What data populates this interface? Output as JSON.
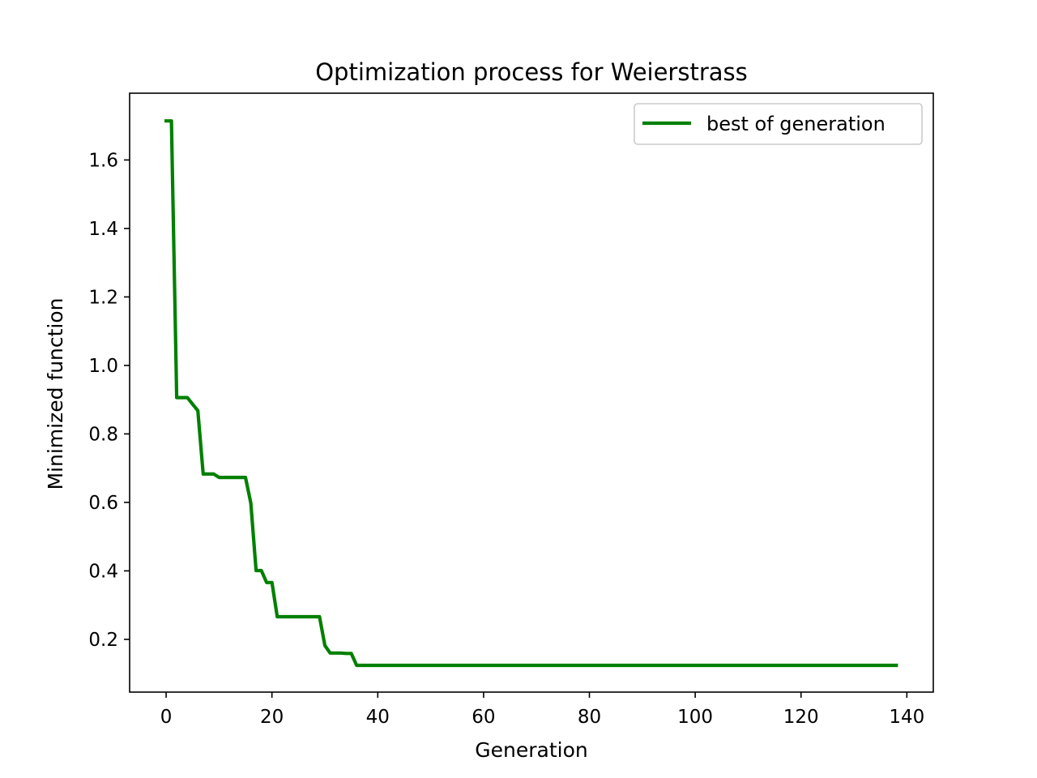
{
  "chart_data": {
    "type": "line",
    "title": "Optimization process for Weierstrass",
    "xlabel": "Generation",
    "ylabel": "Minimized function",
    "xlim": [
      -6.9,
      145
    ],
    "ylim": [
      0.046,
      1.795
    ],
    "xticks": [
      0,
      20,
      40,
      60,
      80,
      100,
      120,
      140
    ],
    "yticks": [
      0.2,
      0.4,
      0.6,
      0.8,
      1.0,
      1.2,
      1.4,
      1.6
    ],
    "ytick_labels": [
      "0.2",
      "0.4",
      "0.6",
      "0.8",
      "1.0",
      "1.2",
      "1.4",
      "1.6"
    ],
    "grid": false,
    "legend_position": "upper right",
    "series": [
      {
        "name": "best of generation",
        "color": "#008000",
        "x": [
          0,
          1,
          2,
          3,
          4,
          5,
          6,
          7,
          8,
          9,
          10,
          11,
          12,
          13,
          14,
          15,
          16,
          17,
          18,
          19,
          20,
          21,
          22,
          23,
          24,
          25,
          26,
          27,
          28,
          29,
          30,
          31,
          32,
          33,
          34,
          35,
          36,
          37,
          138
        ],
        "y": [
          1.714,
          1.714,
          0.906,
          0.906,
          0.906,
          0.887,
          0.868,
          0.683,
          0.683,
          0.683,
          0.673,
          0.673,
          0.673,
          0.673,
          0.673,
          0.673,
          0.598,
          0.401,
          0.401,
          0.366,
          0.366,
          0.266,
          0.266,
          0.266,
          0.266,
          0.266,
          0.266,
          0.266,
          0.266,
          0.266,
          0.182,
          0.16,
          0.16,
          0.16,
          0.159,
          0.159,
          0.124,
          0.124,
          0.124
        ]
      }
    ]
  }
}
